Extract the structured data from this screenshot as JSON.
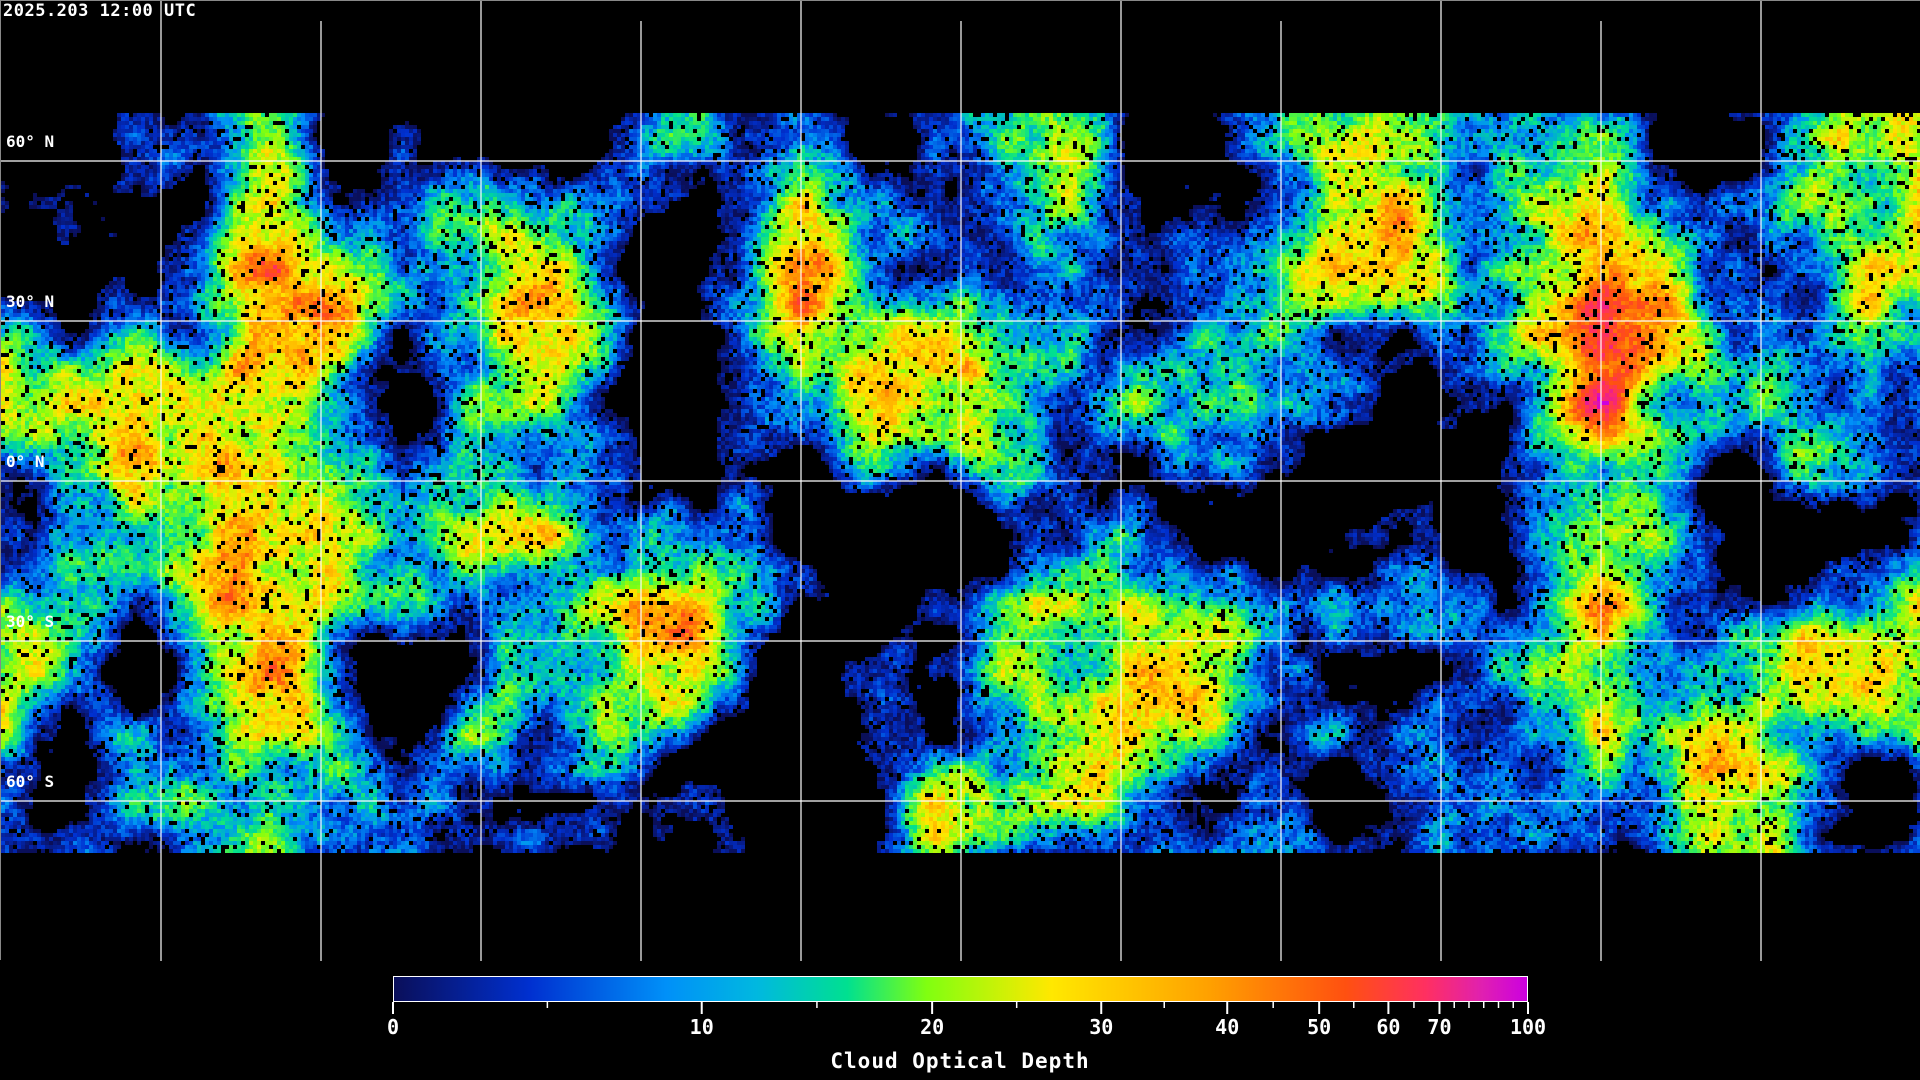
{
  "header": {
    "timestamp": "2025.203 12:00 UTC"
  },
  "map": {
    "projection": "equirectangular",
    "gridlines": true,
    "lat_labels": [
      "60° N",
      "30° N",
      "0° N",
      "30° S",
      "60° S"
    ],
    "grid_color": "#ffffff",
    "coastline_color": "#ffffff",
    "no_data_color": "#000000"
  },
  "colorbar": {
    "title": "Cloud Optical Depth",
    "tick_labels": [
      "0",
      "10",
      "20",
      "30",
      "40",
      "50",
      "60",
      "70",
      "100"
    ],
    "range": [
      0,
      100
    ],
    "colors": [
      "#0a0f5a",
      "#0030d0",
      "#0090f8",
      "#00e090",
      "#80ff10",
      "#ffe800",
      "#ffa000",
      "#ff5010",
      "#ff3060",
      "#cc00e0"
    ]
  }
}
